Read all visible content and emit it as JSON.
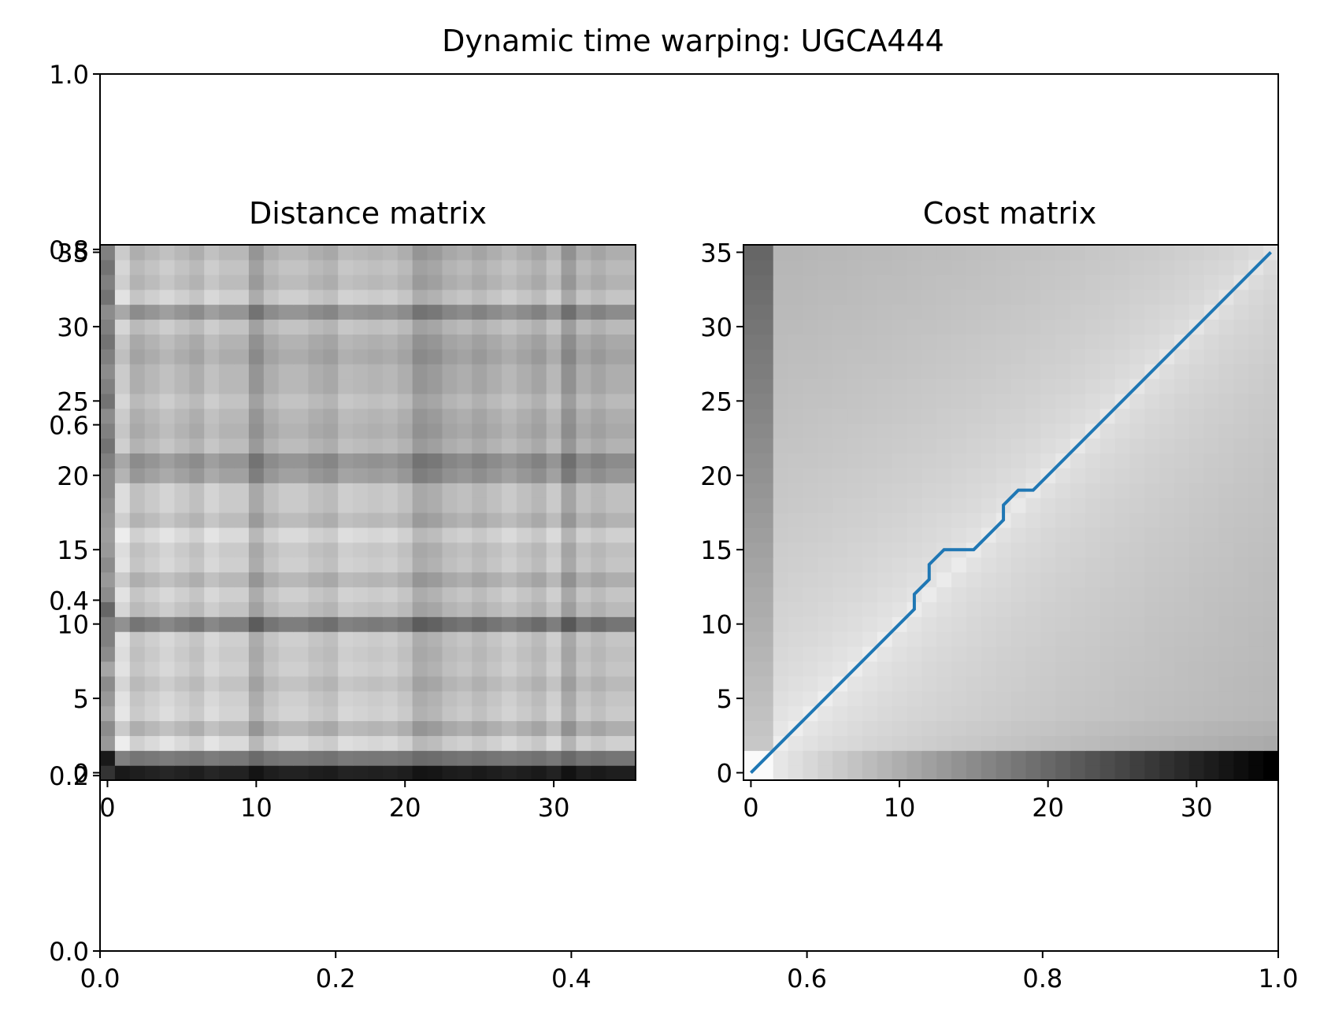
{
  "title": "Dynamic time warping: UGCA444",
  "chart_data": [
    {
      "type": "line",
      "role": "outer-axes",
      "title": "Dynamic time warping: UGCA444",
      "xlim": [
        0,
        1
      ],
      "ylim": [
        0,
        1
      ],
      "xticks": [
        "0.0",
        "0.2",
        "0.4",
        "0.6",
        "0.8",
        "1.0"
      ],
      "yticks": [
        "0.0",
        "0.2",
        "0.4",
        "0.6",
        "0.8",
        "1.0"
      ],
      "grid": false
    },
    {
      "type": "heatmap",
      "title": "Distance matrix",
      "colormap": "gray_r",
      "size": [
        36,
        36
      ],
      "xlim": [
        -0.5,
        35.5
      ],
      "ylim": [
        -0.5,
        35.5
      ],
      "xticks": [
        "0",
        "10",
        "20",
        "30"
      ],
      "yticks": [
        "0",
        "5",
        "10",
        "15",
        "20",
        "25",
        "30",
        "35"
      ],
      "row_profile": [
        0.95,
        0.55,
        0.05,
        0.2,
        0.08,
        0.1,
        0.15,
        0.1,
        0.12,
        0.1,
        0.45,
        0.15,
        0.1,
        0.2,
        0.1,
        0.12,
        0.05,
        0.18,
        0.12,
        0.12,
        0.3,
        0.35,
        0.18,
        0.22,
        0.2,
        0.15,
        0.2,
        0.2,
        0.25,
        0.22,
        0.15,
        0.35,
        0.1,
        0.18,
        0.15,
        0.2
      ],
      "col_profile": [
        0.3,
        0.1,
        0.25,
        0.2,
        0.15,
        0.2,
        0.25,
        0.15,
        0.2,
        0.2,
        0.38,
        0.25,
        0.2,
        0.2,
        0.25,
        0.28,
        0.18,
        0.2,
        0.22,
        0.2,
        0.25,
        0.38,
        0.35,
        0.28,
        0.25,
        0.3,
        0.25,
        0.2,
        0.25,
        0.3,
        0.2,
        0.4,
        0.25,
        0.3,
        0.25,
        0.25
      ],
      "first_col": [
        0.8,
        0.9,
        0.4,
        0.45,
        0.35,
        0.4,
        0.45,
        0.35,
        0.45,
        0.5,
        0.5,
        0.6,
        0.45,
        0.4,
        0.45,
        0.4,
        0.38,
        0.4,
        0.42,
        0.45,
        0.45,
        0.5,
        0.55,
        0.5,
        0.45,
        0.55,
        0.5,
        0.45,
        0.5,
        0.55,
        0.5,
        0.45,
        0.55,
        0.5,
        0.55,
        0.5
      ]
    },
    {
      "type": "heatmap",
      "title": "Cost matrix",
      "colormap": "gray_r",
      "size": [
        36,
        36
      ],
      "xlim": [
        -0.5,
        35.5
      ],
      "ylim": [
        -0.5,
        35.5
      ],
      "xticks": [
        "0",
        "10",
        "20",
        "30"
      ],
      "yticks": [
        "0",
        "5",
        "10",
        "15",
        "20",
        "25",
        "30",
        "35"
      ],
      "bottom_row_max": 1.0,
      "left_col_max": 0.6,
      "path": {
        "color": "#1f77b4",
        "x": [
          0,
          11,
          11,
          12,
          12,
          13,
          15,
          17,
          17,
          18,
          19,
          35
        ],
        "y": [
          0,
          11,
          12,
          13,
          14,
          15,
          15,
          17,
          18,
          19,
          19,
          35
        ]
      }
    }
  ]
}
